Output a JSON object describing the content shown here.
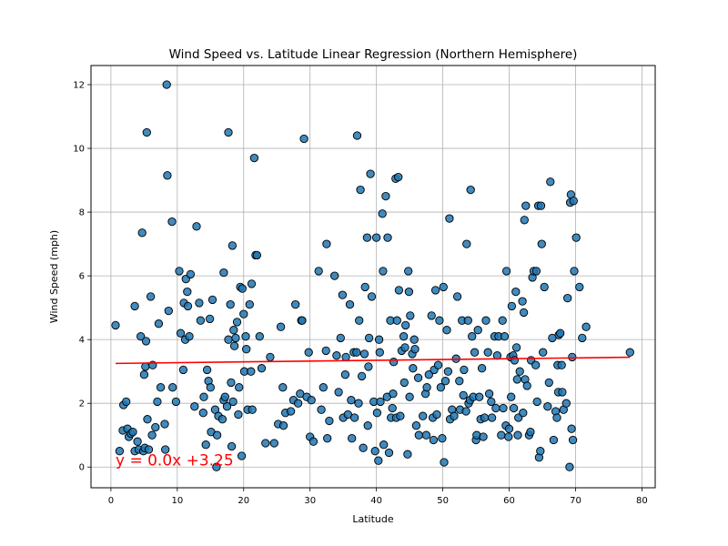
{
  "chart_data": {
    "type": "scatter",
    "title": "Wind Speed vs. Latitude Linear Regression (Northern Hemisphere)",
    "xlabel": "Latitude",
    "ylabel": "Wind Speed (mph)",
    "xlim": [
      -3,
      82
    ],
    "ylim": [
      -0.65,
      12.6
    ],
    "xticks": [
      0,
      10,
      20,
      30,
      40,
      50,
      60,
      70,
      80
    ],
    "yticks": [
      0,
      2,
      4,
      6,
      8,
      10,
      12
    ],
    "grid": true,
    "point_color": "#1f77b4",
    "point_edge_color": "#000000",
    "regression": {
      "color": "#ff0000",
      "slope": 0.0025,
      "intercept": 3.25,
      "x_range": [
        0.7,
        78.2
      ],
      "equation": "y = 0.0x +3.25",
      "equation_position": [
        0.7,
        0.05
      ],
      "equation_color": "#ff0000"
    },
    "points": [
      [
        0.7,
        4.45
      ],
      [
        1.3,
        0.5
      ],
      [
        1.8,
        1.15
      ],
      [
        1.9,
        1.95
      ],
      [
        2.3,
        2.05
      ],
      [
        2.5,
        1.2
      ],
      [
        2.7,
        0.95
      ],
      [
        3.0,
        1.05
      ],
      [
        3.3,
        1.1
      ],
      [
        3.6,
        0.5
      ],
      [
        3.6,
        5.05
      ],
      [
        4.0,
        0.8
      ],
      [
        4.2,
        0.55
      ],
      [
        4.5,
        4.1
      ],
      [
        4.7,
        7.35
      ],
      [
        4.9,
        0.5
      ],
      [
        5.0,
        2.9
      ],
      [
        5.1,
        0.6
      ],
      [
        5.2,
        3.15
      ],
      [
        5.3,
        3.95
      ],
      [
        5.4,
        10.5
      ],
      [
        5.5,
        1.5
      ],
      [
        5.7,
        0.55
      ],
      [
        6.0,
        5.35
      ],
      [
        6.2,
        1.0
      ],
      [
        6.3,
        3.2
      ],
      [
        6.7,
        1.25
      ],
      [
        7.0,
        2.05
      ],
      [
        7.2,
        4.5
      ],
      [
        7.5,
        2.5
      ],
      [
        8.1,
        1.35
      ],
      [
        8.2,
        0.55
      ],
      [
        8.4,
        12.0
      ],
      [
        8.5,
        9.15
      ],
      [
        8.7,
        4.9
      ],
      [
        9.2,
        7.7
      ],
      [
        9.3,
        2.5
      ],
      [
        9.8,
        2.05
      ],
      [
        10.3,
        6.15
      ],
      [
        10.5,
        4.2
      ],
      [
        10.9,
        3.05
      ],
      [
        11.0,
        5.15
      ],
      [
        11.2,
        4.0
      ],
      [
        11.3,
        5.9
      ],
      [
        11.5,
        5.5
      ],
      [
        11.6,
        5.05
      ],
      [
        11.8,
        4.1
      ],
      [
        12.0,
        6.05
      ],
      [
        12.6,
        1.9
      ],
      [
        12.9,
        7.55
      ],
      [
        13.3,
        5.15
      ],
      [
        13.5,
        4.6
      ],
      [
        13.9,
        1.7
      ],
      [
        14.0,
        2.2
      ],
      [
        14.3,
        0.7
      ],
      [
        14.5,
        3.05
      ],
      [
        14.7,
        2.7
      ],
      [
        14.9,
        4.65
      ],
      [
        15.0,
        2.5
      ],
      [
        15.1,
        1.1
      ],
      [
        15.3,
        5.25
      ],
      [
        15.7,
        1.8
      ],
      [
        15.9,
        0.0
      ],
      [
        16.0,
        1.0
      ],
      [
        16.2,
        1.6
      ],
      [
        16.8,
        1.5
      ],
      [
        17.0,
        2.1
      ],
      [
        17.0,
        6.1
      ],
      [
        17.2,
        2.2
      ],
      [
        17.5,
        1.9
      ],
      [
        17.7,
        10.5
      ],
      [
        17.7,
        4.0
      ],
      [
        18.0,
        5.1
      ],
      [
        18.1,
        2.65
      ],
      [
        18.2,
        0.65
      ],
      [
        18.3,
        6.95
      ],
      [
        18.4,
        2.05
      ],
      [
        18.5,
        4.3
      ],
      [
        18.6,
        3.8
      ],
      [
        18.8,
        4.05
      ],
      [
        19.0,
        4.55
      ],
      [
        19.2,
        1.65
      ],
      [
        19.3,
        2.5
      ],
      [
        19.5,
        5.65
      ],
      [
        19.7,
        0.35
      ],
      [
        19.8,
        5.6
      ],
      [
        20.0,
        4.8
      ],
      [
        20.1,
        3.0
      ],
      [
        20.3,
        4.1
      ],
      [
        20.4,
        3.7
      ],
      [
        20.6,
        1.8
      ],
      [
        20.9,
        5.1
      ],
      [
        21.1,
        3.0
      ],
      [
        21.2,
        5.75
      ],
      [
        21.3,
        1.8
      ],
      [
        21.6,
        9.7
      ],
      [
        21.8,
        6.65
      ],
      [
        22.0,
        6.65
      ],
      [
        22.4,
        4.1
      ],
      [
        22.7,
        3.1
      ],
      [
        23.3,
        0.75
      ],
      [
        24.0,
        3.45
      ],
      [
        24.6,
        0.75
      ],
      [
        25.2,
        1.35
      ],
      [
        25.6,
        4.4
      ],
      [
        25.9,
        2.5
      ],
      [
        26.0,
        1.3
      ],
      [
        26.3,
        1.7
      ],
      [
        27.1,
        1.75
      ],
      [
        27.5,
        2.1
      ],
      [
        27.8,
        5.1
      ],
      [
        28.2,
        2.0
      ],
      [
        28.5,
        2.3
      ],
      [
        28.7,
        4.6
      ],
      [
        28.8,
        4.6
      ],
      [
        29.1,
        10.3
      ],
      [
        29.5,
        2.2
      ],
      [
        29.8,
        3.6
      ],
      [
        30.0,
        0.95
      ],
      [
        30.2,
        2.1
      ],
      [
        30.5,
        0.8
      ],
      [
        31.3,
        6.15
      ],
      [
        31.7,
        1.8
      ],
      [
        32.0,
        2.5
      ],
      [
        32.4,
        3.65
      ],
      [
        32.5,
        7.0
      ],
      [
        32.6,
        0.9
      ],
      [
        32.9,
        1.45
      ],
      [
        33.7,
        6.0
      ],
      [
        34.0,
        3.5
      ],
      [
        34.3,
        2.35
      ],
      [
        34.6,
        4.05
      ],
      [
        34.9,
        5.4
      ],
      [
        35.0,
        1.55
      ],
      [
        35.3,
        2.9
      ],
      [
        35.4,
        3.45
      ],
      [
        35.7,
        1.65
      ],
      [
        36.0,
        5.1
      ],
      [
        36.2,
        2.1
      ],
      [
        36.3,
        0.9
      ],
      [
        36.6,
        3.6
      ],
      [
        36.7,
        1.55
      ],
      [
        37.0,
        3.6
      ],
      [
        37.1,
        10.4
      ],
      [
        37.3,
        2.0
      ],
      [
        37.4,
        4.6
      ],
      [
        37.6,
        8.7
      ],
      [
        37.8,
        2.85
      ],
      [
        38.0,
        0.6
      ],
      [
        38.2,
        3.55
      ],
      [
        38.3,
        5.65
      ],
      [
        38.6,
        7.2
      ],
      [
        38.7,
        1.3
      ],
      [
        38.8,
        3.15
      ],
      [
        38.9,
        4.05
      ],
      [
        39.1,
        9.2
      ],
      [
        39.3,
        5.35
      ],
      [
        39.6,
        2.05
      ],
      [
        39.8,
        0.5
      ],
      [
        40.0,
        7.2
      ],
      [
        40.1,
        1.7
      ],
      [
        40.3,
        0.2
      ],
      [
        40.4,
        4.0
      ],
      [
        40.5,
        3.6
      ],
      [
        40.6,
        2.05
      ],
      [
        40.9,
        7.95
      ],
      [
        41.0,
        6.15
      ],
      [
        41.1,
        0.7
      ],
      [
        41.4,
        8.5
      ],
      [
        41.6,
        2.2
      ],
      [
        41.7,
        7.2
      ],
      [
        41.9,
        0.45
      ],
      [
        42.1,
        4.6
      ],
      [
        42.2,
        1.55
      ],
      [
        42.4,
        1.85
      ],
      [
        42.5,
        2.3
      ],
      [
        42.6,
        3.3
      ],
      [
        42.9,
        9.05
      ],
      [
        43.0,
        1.55
      ],
      [
        43.1,
        4.6
      ],
      [
        43.3,
        9.1
      ],
      [
        43.4,
        5.55
      ],
      [
        43.6,
        1.6
      ],
      [
        43.8,
        3.65
      ],
      [
        44.1,
        4.1
      ],
      [
        44.2,
        2.65
      ],
      [
        44.3,
        3.75
      ],
      [
        44.4,
        4.45
      ],
      [
        44.7,
        0.4
      ],
      [
        44.8,
        6.15
      ],
      [
        44.9,
        5.5
      ],
      [
        45.0,
        2.2
      ],
      [
        45.1,
        4.75
      ],
      [
        45.4,
        3.55
      ],
      [
        45.5,
        3.1
      ],
      [
        45.7,
        4.0
      ],
      [
        45.8,
        3.7
      ],
      [
        46.0,
        1.3
      ],
      [
        46.3,
        2.8
      ],
      [
        46.4,
        1.0
      ],
      [
        47.0,
        1.6
      ],
      [
        47.4,
        2.3
      ],
      [
        47.5,
        1.0
      ],
      [
        47.6,
        2.5
      ],
      [
        47.9,
        2.9
      ],
      [
        48.3,
        4.75
      ],
      [
        48.5,
        1.55
      ],
      [
        48.6,
        0.85
      ],
      [
        48.7,
        3.05
      ],
      [
        48.9,
        5.55
      ],
      [
        49.1,
        1.65
      ],
      [
        49.3,
        3.2
      ],
      [
        49.5,
        4.6
      ],
      [
        49.7,
        2.5
      ],
      [
        49.9,
        0.9
      ],
      [
        50.1,
        5.65
      ],
      [
        50.2,
        0.15
      ],
      [
        50.4,
        2.7
      ],
      [
        50.6,
        4.3
      ],
      [
        50.8,
        3.0
      ],
      [
        51.0,
        7.8
      ],
      [
        51.1,
        1.5
      ],
      [
        51.4,
        1.8
      ],
      [
        51.7,
        1.6
      ],
      [
        52.0,
        3.4
      ],
      [
        52.2,
        5.35
      ],
      [
        52.5,
        2.7
      ],
      [
        52.6,
        1.8
      ],
      [
        52.9,
        4.6
      ],
      [
        53.1,
        2.25
      ],
      [
        53.2,
        3.05
      ],
      [
        53.5,
        1.75
      ],
      [
        53.6,
        7.0
      ],
      [
        53.8,
        4.6
      ],
      [
        53.9,
        2.0
      ],
      [
        54.1,
        2.1
      ],
      [
        54.2,
        8.7
      ],
      [
        54.4,
        4.1
      ],
      [
        54.6,
        2.2
      ],
      [
        54.8,
        3.6
      ],
      [
        55.0,
        0.85
      ],
      [
        55.1,
        1.0
      ],
      [
        55.3,
        4.3
      ],
      [
        55.5,
        2.2
      ],
      [
        55.7,
        1.5
      ],
      [
        55.9,
        3.1
      ],
      [
        56.1,
        0.95
      ],
      [
        56.3,
        1.55
      ],
      [
        56.5,
        4.6
      ],
      [
        56.8,
        3.6
      ],
      [
        57.0,
        2.3
      ],
      [
        57.3,
        2.05
      ],
      [
        57.4,
        1.55
      ],
      [
        57.8,
        4.1
      ],
      [
        58.0,
        1.85
      ],
      [
        58.2,
        3.5
      ],
      [
        58.4,
        4.1
      ],
      [
        58.8,
        1.0
      ],
      [
        59.0,
        4.6
      ],
      [
        59.1,
        1.85
      ],
      [
        59.3,
        4.1
      ],
      [
        59.5,
        1.3
      ],
      [
        59.6,
        6.15
      ],
      [
        59.9,
        0.95
      ],
      [
        60.0,
        1.2
      ],
      [
        60.2,
        3.45
      ],
      [
        60.3,
        2.2
      ],
      [
        60.4,
        5.05
      ],
      [
        60.6,
        3.5
      ],
      [
        60.7,
        1.85
      ],
      [
        60.8,
        3.35
      ],
      [
        61.0,
        5.5
      ],
      [
        61.1,
        3.75
      ],
      [
        61.2,
        2.75
      ],
      [
        61.3,
        1.0
      ],
      [
        61.4,
        1.55
      ],
      [
        61.6,
        3.0
      ],
      [
        62.0,
        5.2
      ],
      [
        62.1,
        1.7
      ],
      [
        62.2,
        4.85
      ],
      [
        62.3,
        7.75
      ],
      [
        62.4,
        2.75
      ],
      [
        62.5,
        8.2
      ],
      [
        62.7,
        2.55
      ],
      [
        63.0,
        1.0
      ],
      [
        63.2,
        1.1
      ],
      [
        63.3,
        3.35
      ],
      [
        63.5,
        5.95
      ],
      [
        63.7,
        6.15
      ],
      [
        64.0,
        3.2
      ],
      [
        64.1,
        6.15
      ],
      [
        64.2,
        2.05
      ],
      [
        64.4,
        8.2
      ],
      [
        64.5,
        0.3
      ],
      [
        64.7,
        0.5
      ],
      [
        64.8,
        8.2
      ],
      [
        64.9,
        7.0
      ],
      [
        65.1,
        3.6
      ],
      [
        65.3,
        5.65
      ],
      [
        65.8,
        1.9
      ],
      [
        66.0,
        2.65
      ],
      [
        66.2,
        8.95
      ],
      [
        66.5,
        4.05
      ],
      [
        66.7,
        0.85
      ],
      [
        67.0,
        1.75
      ],
      [
        67.2,
        1.55
      ],
      [
        67.3,
        3.2
      ],
      [
        67.4,
        2.35
      ],
      [
        67.5,
        4.15
      ],
      [
        67.7,
        4.2
      ],
      [
        67.9,
        3.2
      ],
      [
        68.0,
        2.35
      ],
      [
        68.2,
        1.8
      ],
      [
        68.6,
        2.0
      ],
      [
        68.8,
        5.3
      ],
      [
        69.1,
        0.0
      ],
      [
        69.2,
        8.3
      ],
      [
        69.3,
        8.55
      ],
      [
        69.4,
        1.2
      ],
      [
        69.5,
        3.45
      ],
      [
        69.6,
        0.85
      ],
      [
        69.7,
        8.35
      ],
      [
        69.8,
        6.15
      ],
      [
        70.1,
        7.2
      ],
      [
        70.6,
        5.65
      ],
      [
        71.0,
        4.05
      ],
      [
        71.6,
        4.4
      ],
      [
        78.2,
        3.6
      ]
    ]
  }
}
